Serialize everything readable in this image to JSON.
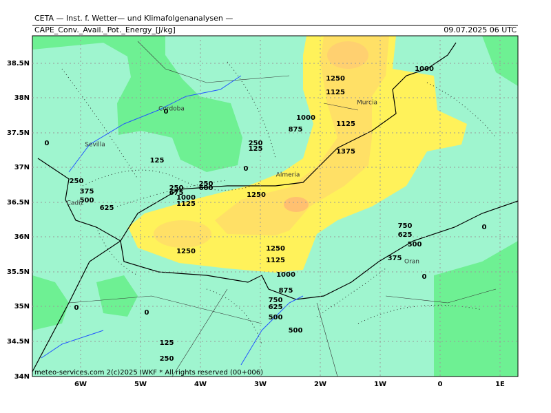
{
  "header": {
    "institute": "CETA — Inst. f. Wetter— und Klimafolgenanalysen —",
    "parameter": "CAPE_Conv._Avail._Pot._Energy_[J/kg]",
    "valid_time": "09.07.2025 06 UTC"
  },
  "axes": {
    "lat_labels": [
      "38.5N",
      "38N",
      "37.5N",
      "37N",
      "36.5N",
      "36N",
      "35.5N",
      "35N",
      "34.5N",
      "34N"
    ],
    "lon_labels": [
      "6W",
      "5W",
      "4W",
      "3W",
      "2W",
      "1W",
      "0",
      "1E"
    ]
  },
  "cities": [
    "Cordoba",
    "Sevilla",
    "Cadiz",
    "Murcia",
    "Almeria",
    "Oran"
  ],
  "contour_labels": [
    1000,
    1250,
    1125,
    1000,
    875,
    1125,
    1375,
    250,
    125,
    0,
    125,
    0,
    0,
    250,
    375,
    500,
    625,
    250,
    675,
    250,
    600,
    1000,
    1125,
    1250,
    1250,
    1250,
    1125,
    1000,
    875,
    750,
    625,
    500,
    500,
    750,
    625,
    500,
    375,
    0,
    0,
    0,
    0,
    125,
    250
  ],
  "footer": "meteo-services.com 2(c)2025 IWKF * All rights reserved (00+006)"
}
